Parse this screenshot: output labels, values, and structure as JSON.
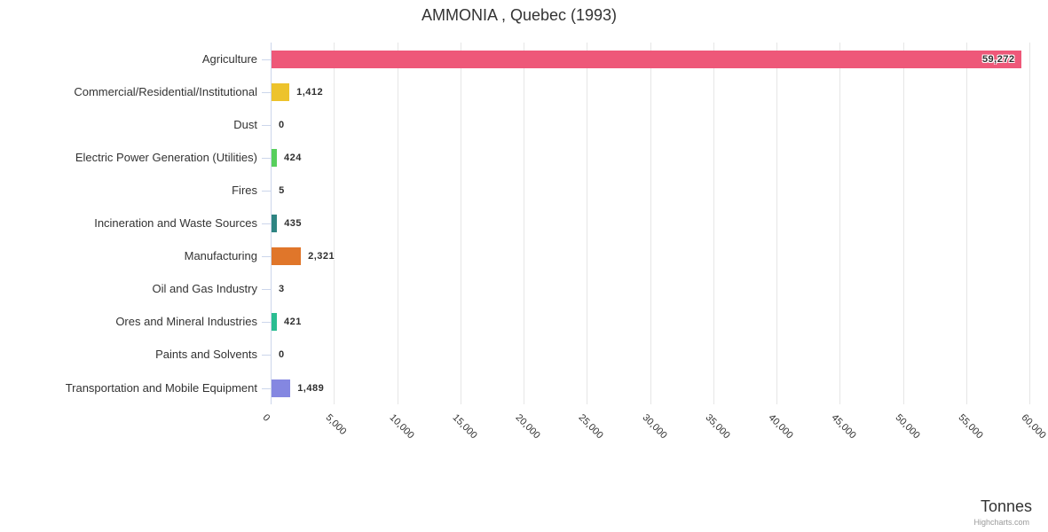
{
  "chart_data": {
    "type": "bar",
    "title": "AMMONIA , Quebec (1993)",
    "value_axis_title": "Tonnes",
    "credits": "Highcharts.com",
    "legend_position": "none",
    "grid": true,
    "categories": [
      "Agriculture",
      "Commercial/Residential/Institutional",
      "Dust",
      "Electric Power Generation (Utilities)",
      "Fires",
      "Incineration and Waste Sources",
      "Manufacturing",
      "Oil and Gas Industry",
      "Ores and Mineral Industries",
      "Paints and Solvents",
      "Transportation and Mobile Equipment"
    ],
    "values": [
      59272,
      1412,
      0,
      424,
      5,
      435,
      2321,
      3,
      421,
      0,
      1489
    ],
    "value_labels": [
      "59,272",
      "1,412",
      "0",
      "424",
      "5",
      "435",
      "2,321",
      "3",
      "421",
      "0",
      "1,489"
    ],
    "bar_colors": [
      "#ee5879",
      "#edc32c",
      "#cccccc",
      "#57cf5c",
      "#cccccc",
      "#2e8482",
      "#e0762a",
      "#cccccc",
      "#2abd91",
      "#cccccc",
      "#8487e1"
    ],
    "xlim": [
      0,
      60000
    ],
    "tick_interval": 5000,
    "tick_labels": [
      "0",
      "5,000",
      "10,000",
      "15,000",
      "20,000",
      "25,000",
      "30,000",
      "35,000",
      "40,000",
      "45,000",
      "50,000",
      "55,000",
      "60,000"
    ],
    "colors": {
      "grid": "#e6e6e6",
      "axis_line": "#ccd6eb",
      "category_label": "#333333",
      "data_label": "#2f2f2f",
      "title": "#333333",
      "credits": "#999999"
    }
  }
}
